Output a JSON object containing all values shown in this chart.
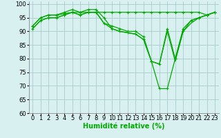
{
  "x_values": [
    0,
    1,
    2,
    3,
    4,
    5,
    6,
    7,
    8,
    9,
    10,
    11,
    12,
    13,
    14,
    15,
    16,
    17,
    18,
    19,
    20,
    21,
    22,
    23
  ],
  "line1": [
    92,
    95,
    96,
    96,
    96.5,
    97,
    97,
    97,
    97,
    97,
    97,
    97,
    97,
    97,
    97,
    97,
    97,
    97,
    97,
    97,
    97,
    97,
    96,
    97
  ],
  "line2": [
    92,
    95,
    96,
    96,
    97,
    98,
    97,
    98,
    98,
    95,
    91,
    90,
    89.5,
    89,
    87,
    79,
    78,
    91,
    80,
    90,
    94,
    95,
    96,
    97
  ],
  "line3": [
    91,
    94,
    95,
    95,
    96,
    97,
    96,
    97,
    97,
    93,
    91,
    90,
    89.5,
    89,
    87,
    79,
    78,
    90,
    79,
    90,
    93,
    95,
    96,
    97
  ],
  "line4": [
    91,
    94,
    95,
    95,
    96,
    97,
    96,
    97,
    97,
    93,
    92,
    91,
    90,
    90,
    88,
    79,
    69,
    69,
    80,
    91,
    94,
    95,
    96,
    97
  ],
  "background_color": "#d8f0f0",
  "grid_color": "#aacaca",
  "line_color": "#00aa00",
  "xlabel": "Humidité relative (%)",
  "ylim": [
    60,
    101
  ],
  "xlim": [
    -0.5,
    23.5
  ],
  "yticks": [
    60,
    65,
    70,
    75,
    80,
    85,
    90,
    95,
    100
  ],
  "xticks": [
    0,
    1,
    2,
    3,
    4,
    5,
    6,
    7,
    8,
    9,
    10,
    11,
    12,
    13,
    14,
    15,
    16,
    17,
    18,
    19,
    20,
    21,
    22,
    23
  ],
  "xlabel_color": "#00aa00",
  "xlabel_fontsize": 7,
  "tick_fontsize": 6,
  "line_width": 0.9,
  "marker_size": 3
}
